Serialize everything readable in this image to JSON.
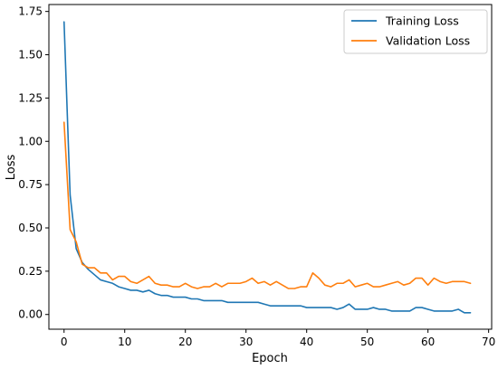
{
  "chart_data": {
    "type": "line",
    "title": "",
    "xlabel": "Epoch",
    "ylabel": "Loss",
    "xlim": [
      -2.5,
      70.5
    ],
    "ylim": [
      -0.085,
      1.79
    ],
    "xticks": [
      0,
      10,
      20,
      30,
      40,
      50,
      60,
      70
    ],
    "yticks": [
      0.0,
      0.25,
      0.5,
      0.75,
      1.0,
      1.25,
      1.5,
      1.75
    ],
    "ytick_labels": [
      "0.00",
      "0.25",
      "0.50",
      "0.75",
      "1.00",
      "1.25",
      "1.50",
      "1.75"
    ],
    "grid": false,
    "legend_position": "top-right",
    "x": [
      0,
      1,
      2,
      3,
      4,
      5,
      6,
      7,
      8,
      9,
      10,
      11,
      12,
      13,
      14,
      15,
      16,
      17,
      18,
      19,
      20,
      21,
      22,
      23,
      24,
      25,
      26,
      27,
      28,
      29,
      30,
      31,
      32,
      33,
      34,
      35,
      36,
      37,
      38,
      39,
      40,
      41,
      42,
      43,
      44,
      45,
      46,
      47,
      48,
      49,
      50,
      51,
      52,
      53,
      54,
      55,
      56,
      57,
      58,
      59,
      60,
      61,
      62,
      63,
      64,
      65,
      66,
      67
    ],
    "series": [
      {
        "name": "Training Loss",
        "color": "#1f77b4",
        "values": [
          1.69,
          0.69,
          0.38,
          0.3,
          0.26,
          0.23,
          0.2,
          0.19,
          0.18,
          0.16,
          0.15,
          0.14,
          0.14,
          0.13,
          0.14,
          0.12,
          0.11,
          0.11,
          0.1,
          0.1,
          0.1,
          0.09,
          0.09,
          0.08,
          0.08,
          0.08,
          0.08,
          0.07,
          0.07,
          0.07,
          0.07,
          0.07,
          0.07,
          0.06,
          0.05,
          0.05,
          0.05,
          0.05,
          0.05,
          0.05,
          0.04,
          0.04,
          0.04,
          0.04,
          0.04,
          0.03,
          0.04,
          0.06,
          0.03,
          0.03,
          0.03,
          0.04,
          0.03,
          0.03,
          0.02,
          0.02,
          0.02,
          0.02,
          0.04,
          0.04,
          0.03,
          0.02,
          0.02,
          0.02,
          0.02,
          0.03,
          0.01,
          0.01
        ]
      },
      {
        "name": "Validation Loss",
        "color": "#ff7f0e",
        "values": [
          1.11,
          0.49,
          0.42,
          0.29,
          0.27,
          0.27,
          0.24,
          0.24,
          0.2,
          0.22,
          0.22,
          0.19,
          0.18,
          0.2,
          0.22,
          0.18,
          0.17,
          0.17,
          0.16,
          0.16,
          0.18,
          0.16,
          0.15,
          0.16,
          0.16,
          0.18,
          0.16,
          0.18,
          0.18,
          0.18,
          0.19,
          0.21,
          0.18,
          0.19,
          0.17,
          0.19,
          0.17,
          0.15,
          0.15,
          0.16,
          0.16,
          0.24,
          0.21,
          0.17,
          0.16,
          0.18,
          0.18,
          0.2,
          0.16,
          0.17,
          0.18,
          0.16,
          0.16,
          0.17,
          0.18,
          0.19,
          0.17,
          0.18,
          0.21,
          0.21,
          0.17,
          0.21,
          0.19,
          0.18,
          0.19,
          0.19,
          0.19,
          0.18
        ]
      }
    ]
  }
}
